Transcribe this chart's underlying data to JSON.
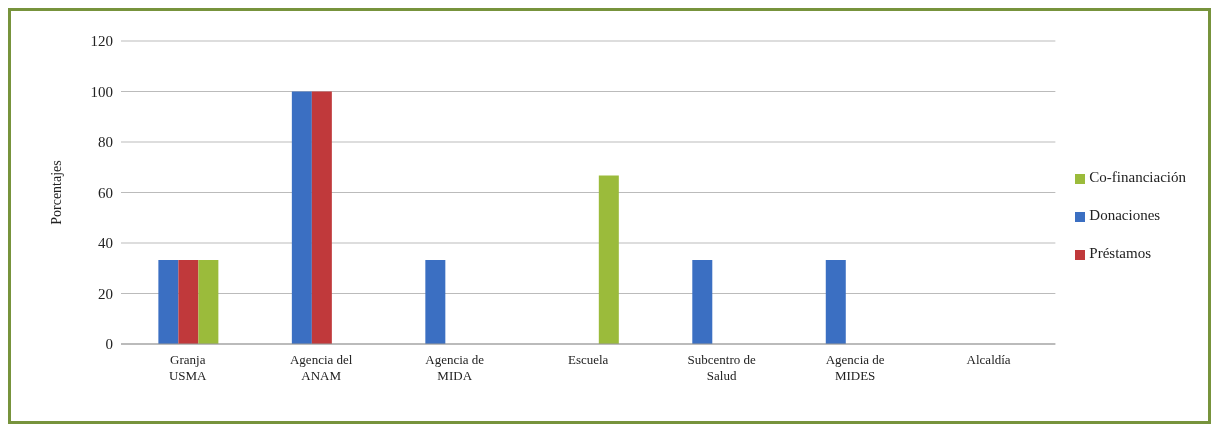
{
  "chart_data": {
    "type": "bar",
    "ylabel": "Porcentajes",
    "categories": [
      "Granja\nUSMA",
      "Agencia del\nANAM",
      "Agencia de\nMIDA",
      "Escuela",
      "Subcentro de\nSalud",
      "Agencia de\nMIDES",
      "Alcaldía"
    ],
    "series": [
      {
        "name": "Donaciones",
        "color": "#3b6fc2",
        "values": [
          33.3,
          100,
          33.3,
          null,
          33.3,
          33.3,
          null
        ]
      },
      {
        "name": "Préstamos",
        "color": "#c0393b",
        "values": [
          33.3,
          100,
          null,
          null,
          null,
          null,
          null
        ]
      },
      {
        "name": "Co-financiación",
        "color": "#9bbb3b",
        "values": [
          33.3,
          null,
          null,
          66.7,
          null,
          null,
          null
        ]
      }
    ],
    "ylim": [
      0,
      120
    ],
    "yticks": [
      0,
      20,
      40,
      60,
      80,
      100,
      120
    ],
    "grid": "y",
    "legend": "right"
  }
}
